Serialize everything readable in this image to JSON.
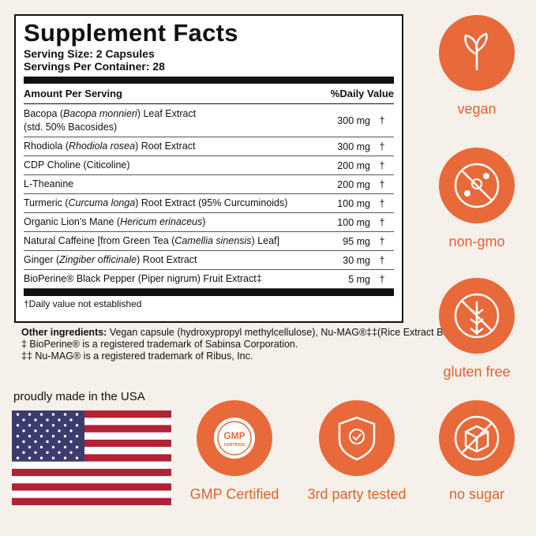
{
  "facts": {
    "title": "Supplement Facts",
    "serving_size": "Serving Size: 2 Capsules",
    "servings_per_container": "Servings Per Container: 28",
    "header": [
      "Amount Per Serving",
      "%Daily Value"
    ],
    "rows": [
      {
        "name": [
          "Bacopa (",
          "Bacopa monnieri",
          ") Leaf Extract"
        ],
        "sub": "(std. 50% Bacosides)",
        "amount": "300 mg",
        "dv": "†"
      },
      {
        "name": [
          "Rhodiola (",
          "Rhodiola rosea",
          ") Root Extract"
        ],
        "amount": "300 mg",
        "dv": "†"
      },
      {
        "name": [
          "CDP Choline (Citicoline)"
        ],
        "amount": "200 mg",
        "dv": "†"
      },
      {
        "name": [
          "L-Theanine"
        ],
        "amount": "200 mg",
        "dv": "†"
      },
      {
        "name": [
          "Turmeric (",
          "Curcuma longa",
          ") Root Extract (95% Curcuminoids)"
        ],
        "amount": "100 mg",
        "dv": "†"
      },
      {
        "name": [
          "Organic Lion’s Mane (",
          "Hericum erinaceus",
          ")"
        ],
        "amount": "100 mg",
        "dv": "†"
      },
      {
        "name": [
          "Natural Caffeine [from Green Tea (",
          "Camellia sinensis",
          ") Leaf]"
        ],
        "amount": "95 mg",
        "dv": "†"
      },
      {
        "name": [
          "Ginger (",
          "Zingiber officinale",
          ") Root Extract"
        ],
        "amount": "30 mg",
        "dv": "†"
      },
      {
        "name": [
          "BioPerine® Black Pepper (Piper nigrum) Fruit Extract‡"
        ],
        "amount": "5 mg",
        "dv": "†"
      }
    ],
    "footnote": "†Daily value not established"
  },
  "other_ingredients": {
    "label": "Other ingredients:",
    "text": "Vegan capsule (hydroxypropyl methylcellulose), Nu-MAG®‡‡(Rice Extract Blend)",
    "notes": [
      "‡ BioPerine® is a registered trademark of Sabinsa Corporation.",
      "‡‡ Nu-MAG® is a registered trademark of Ribus, Inc."
    ]
  },
  "flag_caption": "proudly made in the USA",
  "badges": [
    {
      "label": "vegan"
    },
    {
      "label": "non-gmo"
    },
    {
      "label": "gluten free"
    },
    {
      "label": "GMP Certified",
      "icon_text": [
        "GMP",
        "CERTIFIED"
      ]
    },
    {
      "label": "3rd party tested"
    },
    {
      "label": "no sugar"
    }
  ]
}
